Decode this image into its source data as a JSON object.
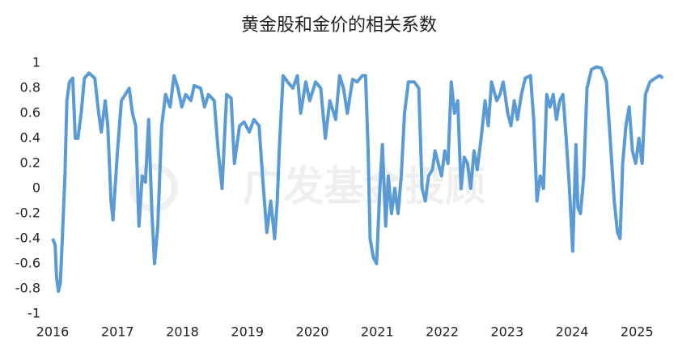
{
  "chart_data": {
    "type": "line",
    "title": "黄金股和金价的相关系数",
    "watermark": "广发基金投顾",
    "x": [
      2016.0,
      2016.04,
      2016.06,
      2016.09,
      2016.12,
      2016.15,
      2016.19,
      2016.22,
      2016.26,
      2016.31,
      2016.35,
      2016.39,
      2016.44,
      2016.49,
      2016.56,
      2016.65,
      2016.71,
      2016.75,
      2016.81,
      2016.85,
      2016.9,
      2016.93,
      2017.0,
      2017.06,
      2017.12,
      2017.18,
      2017.23,
      2017.28,
      2017.33,
      2017.38,
      2017.43,
      2017.48,
      2017.53,
      2017.57,
      2017.62,
      2017.68,
      2017.74,
      2017.81,
      2017.87,
      2017.93,
      2017.99,
      2018.05,
      2018.13,
      2018.18,
      2018.28,
      2018.34,
      2018.4,
      2018.49,
      2018.55,
      2018.61,
      2018.68,
      2018.75,
      2018.8,
      2018.88,
      2018.95,
      2019.03,
      2019.1,
      2019.18,
      2019.24,
      2019.3,
      2019.36,
      2019.42,
      2019.46,
      2019.49,
      2019.55,
      2019.62,
      2019.7,
      2019.77,
      2019.82,
      2019.9,
      2019.96,
      2020.05,
      2020.13,
      2020.2,
      2020.27,
      2020.36,
      2020.42,
      2020.48,
      2020.54,
      2020.62,
      2020.69,
      2020.77,
      2020.82,
      2020.86,
      2020.89,
      2020.94,
      2020.99,
      2021.04,
      2021.08,
      2021.13,
      2021.17,
      2021.22,
      2021.27,
      2021.32,
      2021.37,
      2021.42,
      2021.48,
      2021.57,
      2021.64,
      2021.69,
      2021.74,
      2021.79,
      2021.85,
      2021.89,
      2021.94,
      2021.99,
      2022.04,
      2022.09,
      2022.14,
      2022.19,
      2022.24,
      2022.29,
      2022.34,
      2022.39,
      2022.44,
      2022.49,
      2022.54,
      2022.6,
      2022.66,
      2022.71,
      2022.76,
      2022.84,
      2022.89,
      2022.94,
      2023.01,
      2023.06,
      2023.11,
      2023.16,
      2023.22,
      2023.28,
      2023.36,
      2023.41,
      2023.46,
      2023.51,
      2023.56,
      2023.61,
      2023.66,
      2023.71,
      2023.76,
      2023.81,
      2023.86,
      2023.91,
      2023.96,
      2024.01,
      2024.06,
      2024.09,
      2024.13,
      2024.18,
      2024.23,
      2024.3,
      2024.38,
      2024.45,
      2024.53,
      2024.6,
      2024.65,
      2024.7,
      2024.74,
      2024.78,
      2024.83,
      2024.88,
      2024.93,
      2024.98,
      2025.03,
      2025.08,
      2025.13,
      2025.2,
      2025.28,
      2025.35,
      2025.4
    ],
    "series": [
      {
        "color": "#5b9bd5",
        "values": [
          -0.4,
          -0.45,
          -0.7,
          -0.82,
          -0.75,
          -0.4,
          0.1,
          0.7,
          0.85,
          0.88,
          0.4,
          0.4,
          0.6,
          0.88,
          0.92,
          0.88,
          0.6,
          0.45,
          0.7,
          0.5,
          -0.1,
          -0.25,
          0.3,
          0.7,
          0.75,
          0.8,
          0.6,
          0.5,
          -0.3,
          0.1,
          0.05,
          0.55,
          -0.2,
          -0.6,
          -0.3,
          0.5,
          0.75,
          0.65,
          0.9,
          0.8,
          0.65,
          0.75,
          0.7,
          0.82,
          0.8,
          0.65,
          0.75,
          0.7,
          0.3,
          0.0,
          0.75,
          0.72,
          0.2,
          0.5,
          0.53,
          0.45,
          0.55,
          0.5,
          0.05,
          -0.35,
          -0.1,
          -0.4,
          -0.1,
          0.3,
          0.9,
          0.85,
          0.8,
          0.9,
          0.6,
          0.85,
          0.7,
          0.85,
          0.8,
          0.4,
          0.7,
          0.55,
          0.9,
          0.8,
          0.6,
          0.87,
          0.85,
          0.9,
          0.9,
          0.3,
          -0.4,
          -0.55,
          -0.6,
          0.0,
          0.35,
          -0.3,
          0.1,
          -0.2,
          0.0,
          -0.2,
          0.1,
          0.6,
          0.85,
          0.85,
          0.8,
          0.0,
          -0.1,
          0.1,
          0.15,
          0.3,
          0.2,
          0.1,
          0.3,
          0.2,
          0.85,
          0.6,
          0.7,
          0.0,
          0.25,
          0.2,
          0.0,
          0.3,
          0.15,
          0.4,
          0.7,
          0.5,
          0.85,
          0.7,
          0.75,
          0.85,
          0.6,
          0.5,
          0.7,
          0.55,
          0.75,
          0.88,
          0.9,
          0.55,
          -0.1,
          0.1,
          0.0,
          0.75,
          0.65,
          0.75,
          0.55,
          0.7,
          0.75,
          0.4,
          0.0,
          -0.5,
          0.35,
          -0.15,
          -0.2,
          0.1,
          0.8,
          0.95,
          0.97,
          0.96,
          0.85,
          0.3,
          -0.1,
          -0.35,
          -0.4,
          0.2,
          0.5,
          0.65,
          0.3,
          0.2,
          0.4,
          0.2,
          0.75,
          0.85,
          0.88,
          0.9,
          0.88
        ]
      }
    ],
    "xlim": [
      2016,
      2025.42
    ],
    "xticks": [
      2016,
      2017,
      2018,
      2019,
      2020,
      2021,
      2022,
      2023,
      2024,
      2025
    ],
    "ylim": [
      -1,
      1
    ],
    "yticks": [
      1,
      0.8,
      0.6,
      0.4,
      0.2,
      0,
      -0.2,
      -0.4,
      -0.6,
      -0.8,
      -1
    ],
    "grid": false
  }
}
